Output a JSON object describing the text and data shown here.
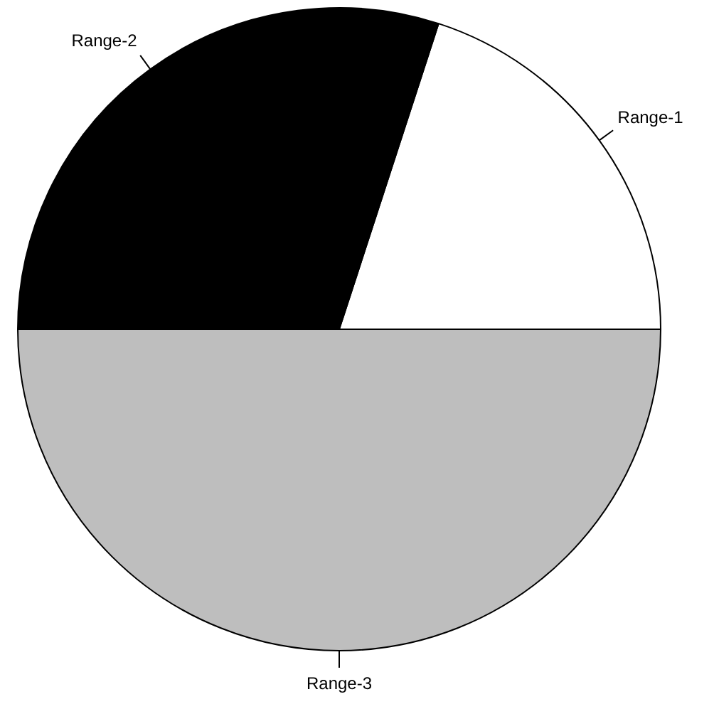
{
  "chart_data": {
    "type": "pie",
    "categories": [
      "Range-1",
      "Range-2",
      "Range-3"
    ],
    "values": [
      20,
      30,
      50
    ],
    "colors": [
      "#ffffff",
      "#000000",
      "#bebebe"
    ]
  }
}
